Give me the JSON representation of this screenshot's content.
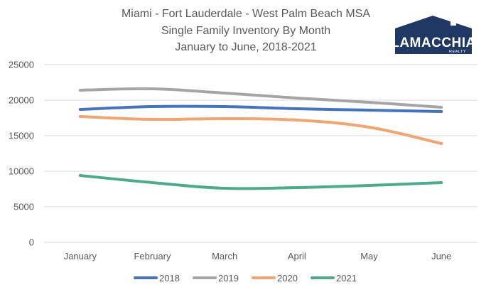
{
  "logo": {
    "name": "LAMACCHIA",
    "sub": "REALTY",
    "color": "#1f3864"
  },
  "chart_data": {
    "type": "line",
    "title": "Miami - Fort Lauderdale - West Palm Beach MSA",
    "title_lines": [
      "Miami - Fort Lauderdale - West Palm Beach MSA",
      "Single Family Inventory By Month",
      "January to June, 2018-2021"
    ],
    "categories": [
      "January",
      "February",
      "March",
      "April",
      "May",
      "June"
    ],
    "ylim": [
      0,
      25000
    ],
    "yticks": [
      0,
      5000,
      10000,
      15000,
      20000,
      25000
    ],
    "ytick_labels": [
      "0",
      "5000",
      "10000",
      "15000",
      "20000",
      "25000"
    ],
    "grid": true,
    "legend_position": "bottom",
    "series": [
      {
        "name": "2018",
        "color": "#4472c4",
        "values": [
          18700,
          19100,
          19100,
          18800,
          18600,
          18400
        ]
      },
      {
        "name": "2019",
        "color": "#a5a5a5",
        "values": [
          21400,
          21600,
          21000,
          20300,
          19700,
          19000
        ]
      },
      {
        "name": "2020",
        "color": "#f4a46e",
        "values": [
          17700,
          17300,
          17400,
          17200,
          16200,
          13900
        ]
      },
      {
        "name": "2021",
        "color": "#4aac8f",
        "values": [
          9400,
          8400,
          7600,
          7700,
          8000,
          8400
        ]
      }
    ]
  }
}
